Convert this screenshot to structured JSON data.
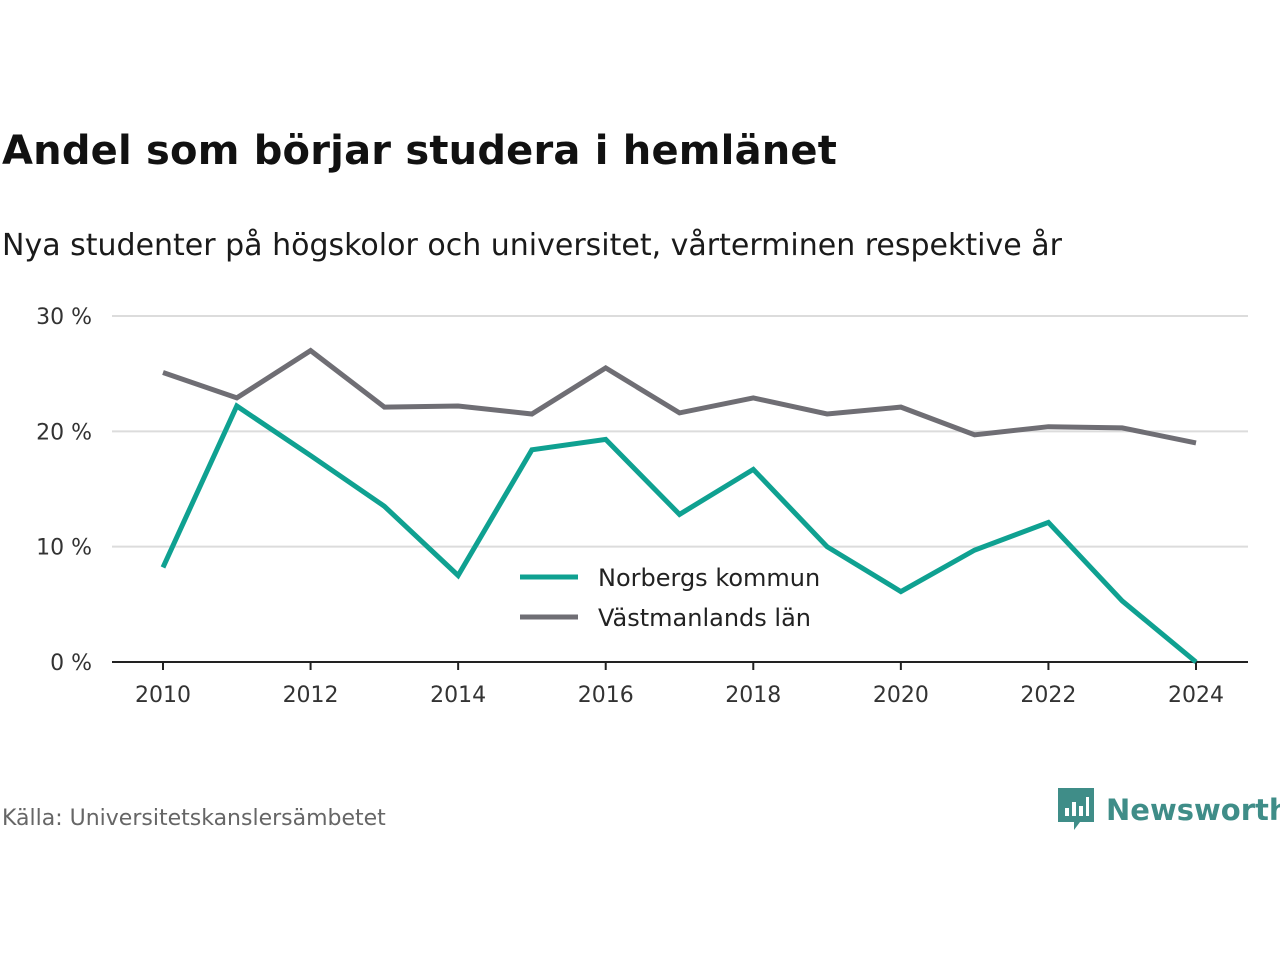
{
  "title": "Andel som börjar studera i hemlänet",
  "subtitle": "Nya studenter på högskolor och universitet, vårterminen respektive år",
  "source": "Källa: Universitetskanslersämbetet",
  "brand": {
    "name": "Newsworthy",
    "icon": "newsworthy-chart-bubble-icon",
    "color": "#3f8d88"
  },
  "chart_data": {
    "type": "line",
    "x": [
      2010,
      2011,
      2012,
      2013,
      2014,
      2015,
      2016,
      2017,
      2018,
      2019,
      2020,
      2021,
      2022,
      2023,
      2024
    ],
    "series": [
      {
        "name": "Norbergs kommun",
        "color": "#0fa191",
        "values": [
          8.2,
          22.2,
          17.9,
          13.5,
          7.5,
          18.4,
          19.3,
          12.8,
          16.7,
          10.0,
          6.1,
          9.7,
          12.1,
          5.3,
          0.0
        ]
      },
      {
        "name": "Västmanlands län",
        "color": "#6f6e74",
        "values": [
          25.1,
          22.9,
          27.0,
          22.1,
          22.2,
          21.5,
          25.5,
          21.6,
          22.9,
          21.5,
          22.1,
          19.7,
          20.4,
          20.3,
          19.0
        ]
      }
    ],
    "xticks": [
      "2010",
      "2012",
      "2014",
      "2016",
      "2018",
      "2020",
      "2022",
      "2024"
    ],
    "yticks": [
      "0 %",
      "10 %",
      "20 %",
      "30 %"
    ],
    "ylim": [
      0,
      30
    ],
    "grid": true,
    "legend": "center"
  }
}
